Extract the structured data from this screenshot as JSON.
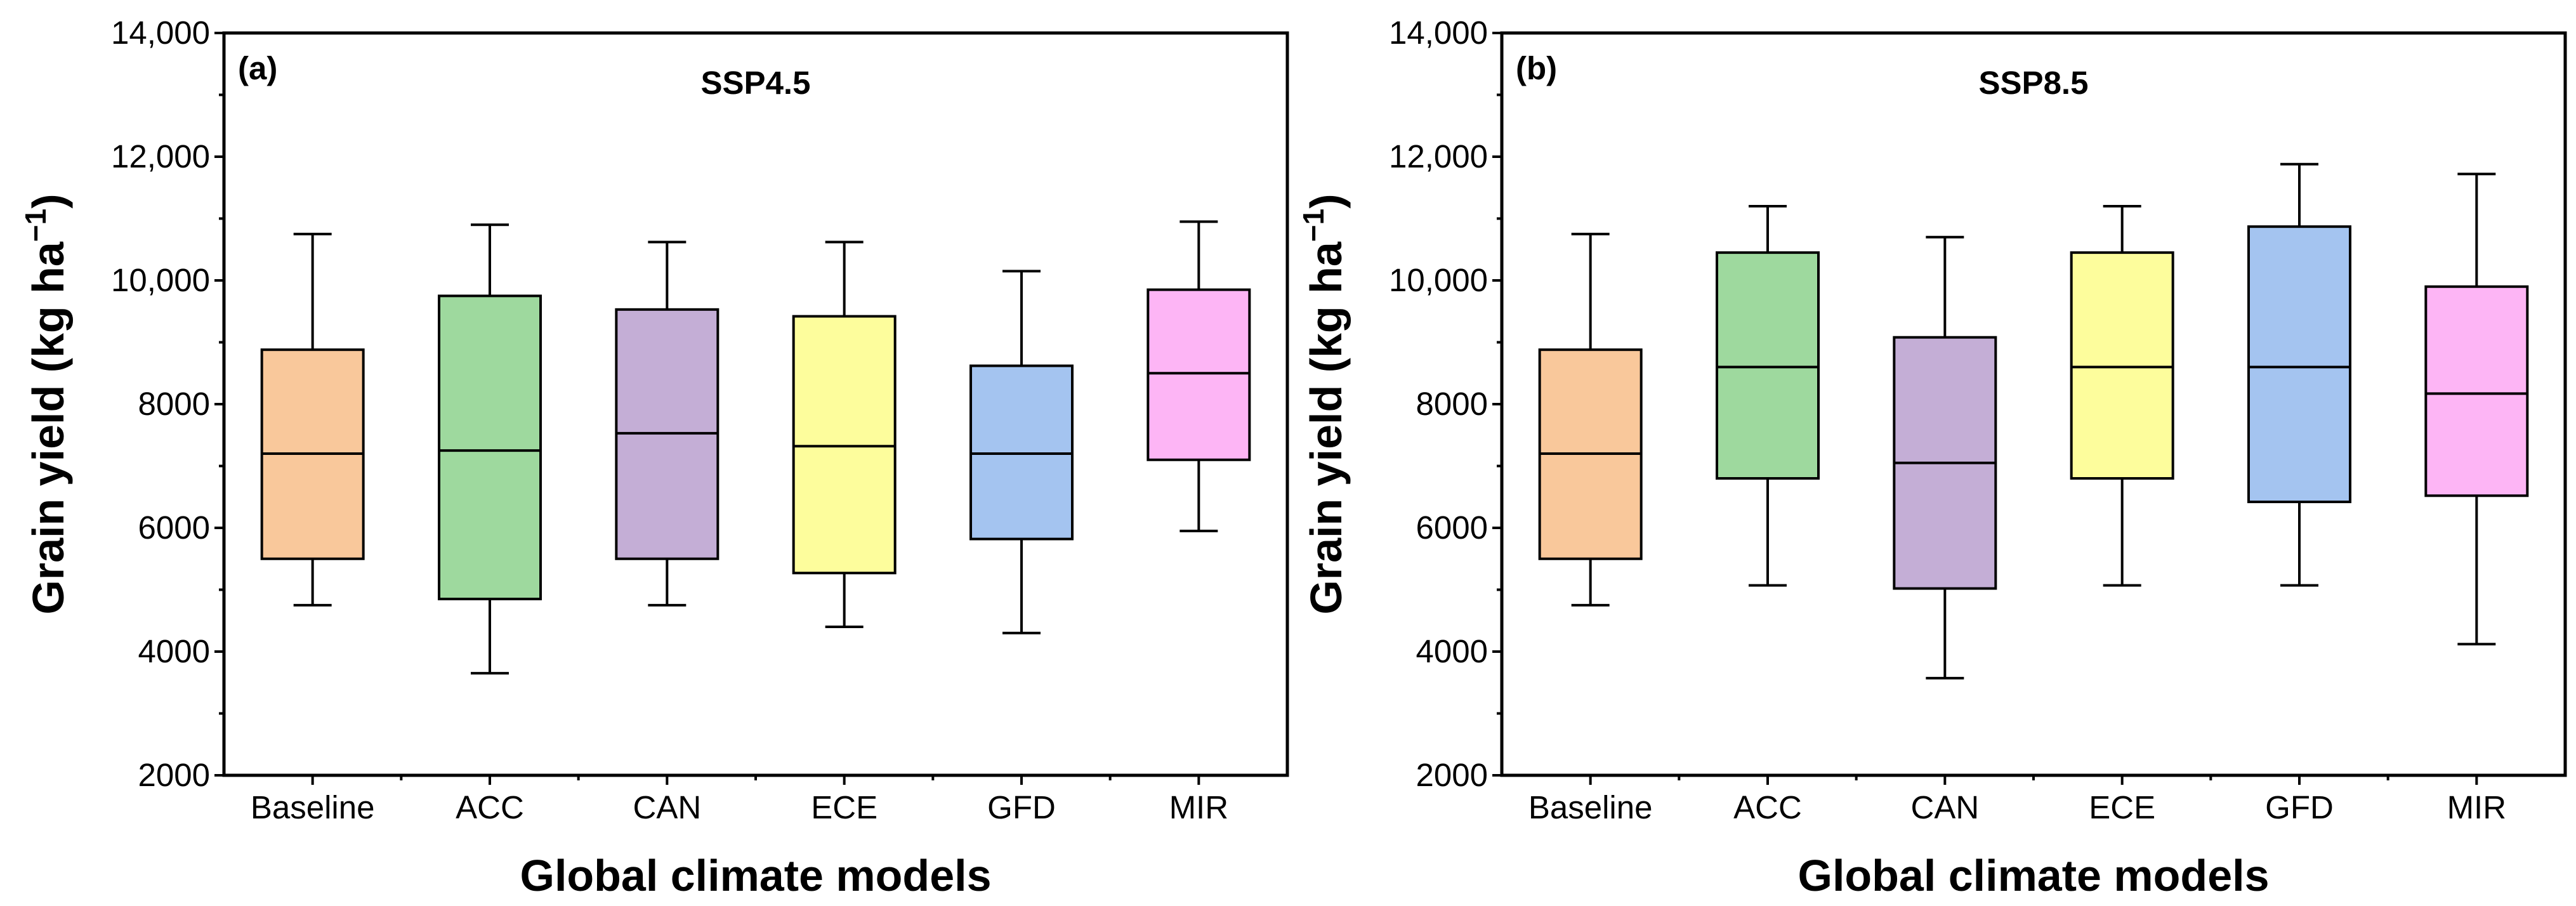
{
  "chart_data": [
    {
      "type": "box",
      "panel_label": "(a)",
      "title": "SSP4.5",
      "xlabel": "Global climate models",
      "ylabel": "Grain yield (kg ha",
      "ylabel_sup": "−1",
      "ylabel_close": ")",
      "ylim": [
        2000,
        14000
      ],
      "yticks": [
        2000,
        4000,
        6000,
        8000,
        10000,
        12000,
        14000
      ],
      "ytick_labels": [
        "2000",
        "4000",
        "6000",
        "8000",
        "10,000",
        "12,000",
        "14,000"
      ],
      "categories": [
        "Baseline",
        "ACC",
        "CAN",
        "ECE",
        "GFD",
        "MIR"
      ],
      "colors": [
        "#F9C89B",
        "#9ED99E",
        "#C4AED6",
        "#FDFD9C",
        "#A4C4F0",
        "#FDB5F5"
      ],
      "boxes": [
        {
          "min": 4750,
          "q1": 5500,
          "median": 7200,
          "q3": 8880,
          "max": 10750
        },
        {
          "min": 3650,
          "q1": 4850,
          "median": 7250,
          "q3": 9750,
          "max": 10900
        },
        {
          "min": 4750,
          "q1": 5500,
          "median": 7530,
          "q3": 9530,
          "max": 10620
        },
        {
          "min": 4400,
          "q1": 5270,
          "median": 7320,
          "q3": 9420,
          "max": 10620
        },
        {
          "min": 4300,
          "q1": 5820,
          "median": 7200,
          "q3": 8620,
          "max": 10150
        },
        {
          "min": 5950,
          "q1": 7100,
          "median": 8500,
          "q3": 9850,
          "max": 10950
        }
      ]
    },
    {
      "type": "box",
      "panel_label": "(b)",
      "title": "SSP8.5",
      "xlabel": "Global climate models",
      "ylabel": "Grain yield (kg ha",
      "ylabel_sup": "−1",
      "ylabel_close": ")",
      "ylim": [
        2000,
        14000
      ],
      "yticks": [
        2000,
        4000,
        6000,
        8000,
        10000,
        12000,
        14000
      ],
      "ytick_labels": [
        "2000",
        "4000",
        "6000",
        "8000",
        "10,000",
        "12,000",
        "14,000"
      ],
      "categories": [
        "Baseline",
        "ACC",
        "CAN",
        "ECE",
        "GFD",
        "MIR"
      ],
      "colors": [
        "#F9C89B",
        "#9ED99E",
        "#C4AED6",
        "#FDFD9C",
        "#A4C4F0",
        "#FDB5F5"
      ],
      "boxes": [
        {
          "min": 4750,
          "q1": 5500,
          "median": 7200,
          "q3": 8880,
          "max": 10750
        },
        {
          "min": 5070,
          "q1": 6800,
          "median": 8600,
          "q3": 10450,
          "max": 11200
        },
        {
          "min": 3570,
          "q1": 5020,
          "median": 7050,
          "q3": 9080,
          "max": 10700
        },
        {
          "min": 5070,
          "q1": 6800,
          "median": 8600,
          "q3": 10450,
          "max": 11200
        },
        {
          "min": 5070,
          "q1": 6420,
          "median": 8600,
          "q3": 10870,
          "max": 11880
        },
        {
          "min": 4120,
          "q1": 6520,
          "median": 8170,
          "q3": 9900,
          "max": 11720
        }
      ]
    }
  ]
}
